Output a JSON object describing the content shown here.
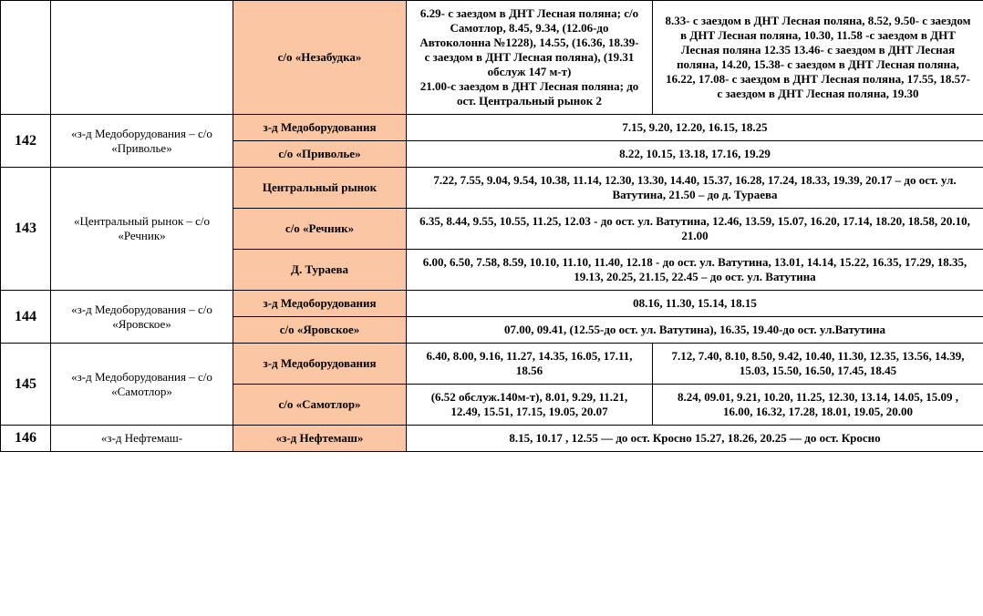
{
  "rows": [
    {
      "route_no": "",
      "route_name": "",
      "stop": "с/о «Незабудка»",
      "col4": "6.29- с заездом в ДНТ Лесная поляна; с/о Самотлор, 8.45, 9.34, (12.06-до Автоколонна №1228), 14.55, (16.36, 18.39- с заездом в ДНТ Лесная поляна), (19.31 обслуж 147 м-т)\n21.00-с заездом в ДНТ Лесная поляна; до ост. Центральный рынок 2",
      "col5": "8.33- с заездом в ДНТ Лесная поляна, 8.52, 9.50- с заездом в ДНТ Лесная поляна, 10.30, 11.58 -с заездом в ДНТ Лесная поляна  12.35 13.46- с заездом в ДНТ Лесная поляна, 14.20, 15.38- с заездом в ДНТ Лесная поляна, 16.22, 17.08- с заездом в ДНТ Лесная поляна, 17.55, 18.57- с заездом в ДНТ Лесная поляна, 19.30"
    },
    {
      "route_no": "142",
      "route_name": "«з-д Медоборудования – с/о «Приволье»",
      "stops": [
        {
          "stop": "з-д Медоборудования",
          "sched": "7.15, 9.20, 12.20, 16.15, 18.25"
        },
        {
          "stop": "с/о «Приволье»",
          "sched": "8.22, 10.15, 13.18, 17.16, 19.29"
        }
      ]
    },
    {
      "route_no": "143",
      "route_name": "«Центральный рынок – с/о «Речник»",
      "stops": [
        {
          "stop": "Центральный рынок",
          "sched": "7.22, 7.55, 9.04, 9.54, 10.38, 11.14, 12.30, 13.30, 14.40, 15.37, 16.28, 17.24, 18.33, 19.39, 20.17 – до ост. ул. Ватутина,  21.50 – до д. Тураева"
        },
        {
          "stop": "с/о «Речник»",
          "sched": "6.35, 8.44, 9.55, 10.55, 11.25, 12.03 - до ост. ул. Ватутина, 12.46, 13.59, 15.07, 16.20, 17.14, 18.20, 18.58, 20.10, 21.00"
        },
        {
          "stop": "Д. Тураева",
          "sched": "6.00,  6.50, 7.58, 8.59, 10.10, 11.10, 11.40, 12.18 -  до ост. ул. Ватутина, 13.01, 14.14, 15.22, 16.35, 17.29, 18.35, 19.13, 20.25, 21.15, 22.45 –  до ост. ул. Ватутина"
        }
      ]
    },
    {
      "route_no": "144",
      "route_name": "«з-д Медоборудования – с/о «Яровское»",
      "stops": [
        {
          "stop": "з-д Медоборудования",
          "sched": "08.16, 11.30, 15.14, 18.15"
        },
        {
          "stop": "с/о «Яровское»",
          "sched": "07.00, 09.41, (12.55-до ост. ул. Ватутина), 16.35, 19.40-до ост. ул.Ватутина"
        }
      ]
    },
    {
      "route_no": "145",
      "route_name": "«з-д Медоборудования – с/о «Самотлор»",
      "stops": [
        {
          "stop": "з-д Медоборудования",
          "col4": "6.40, 8.00, 9.16, 11.27, 14.35, 16.05, 17.11, 18.56",
          "col5": "7.12, 7.40, 8.10, 8.50, 9.42, 10.40, 11.30, 12.35, 13.56, 14.39, 15.03, 15.50, 16.50, 17.45, 18.45"
        },
        {
          "stop": "с/о «Самотлор»",
          "col4": "(6.52 обслуж.140м-т), 8.01, 9.29, 11.21, 12.49, 15.51, 17.15, 19.05, 20.07",
          "col5": "8.24, 09.01, 9.21, 10.20, 11.25, 12.30, 13.14, 14.05, 15.09 , 16.00, 16.32, 17.28, 18.01, 19.05, 20.00"
        }
      ]
    },
    {
      "route_no": "146",
      "route_name": "«з-д Нефтемаш-",
      "stops": [
        {
          "stop": "«з-д Нефтемаш»",
          "sched": "8.15,  10.17 , 12.55 — до ост. Кросно 15.27, 18.26, 20.25 — до ост. Кросно"
        }
      ]
    }
  ]
}
